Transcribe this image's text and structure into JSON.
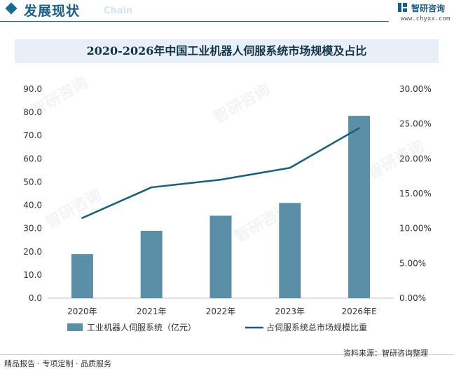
{
  "header": {
    "section_title": "发展现状",
    "section_title_en": "Chain",
    "brand_name": "智研咨询",
    "brand_url": "www.chyxx.com"
  },
  "watermark": {
    "text": "智研咨询"
  },
  "footer": {
    "left": "精品报告 · 专项定制 · 品质服务",
    "source": "资料来源：智研咨询整理"
  },
  "colors": {
    "bar": "#5b8fa8",
    "line": "#1a5f7a",
    "title_bg": "#e6f0f6"
  },
  "chart_data": {
    "type": "bar",
    "title": "2020-2026年中国工业机器人伺服系统市场规模及占比",
    "categories": [
      "2020年",
      "2021年",
      "2022年",
      "2023年",
      "2026年E"
    ],
    "series": [
      {
        "name": "工业机器人伺服系统（亿元）",
        "type": "bar",
        "axis": "left",
        "values": [
          19.0,
          29.0,
          35.5,
          41.0,
          78.5
        ]
      },
      {
        "name": "占伺服系统总市场规模比重",
        "type": "line",
        "axis": "right",
        "values": [
          11.5,
          15.9,
          17.0,
          18.7,
          24.4
        ]
      }
    ],
    "y_left": {
      "ylim": [
        0,
        90
      ],
      "ticks": [
        "0.0",
        "10.0",
        "20.0",
        "30.0",
        "40.0",
        "50.0",
        "60.0",
        "70.0",
        "80.0",
        "90.0"
      ]
    },
    "y_right": {
      "ylim": [
        0,
        30
      ],
      "ticks": [
        "0.00%",
        "5.00%",
        "10.00%",
        "15.00%",
        "20.00%",
        "25.00%",
        "30.00%"
      ]
    },
    "grid": false,
    "legend": "bottom"
  }
}
